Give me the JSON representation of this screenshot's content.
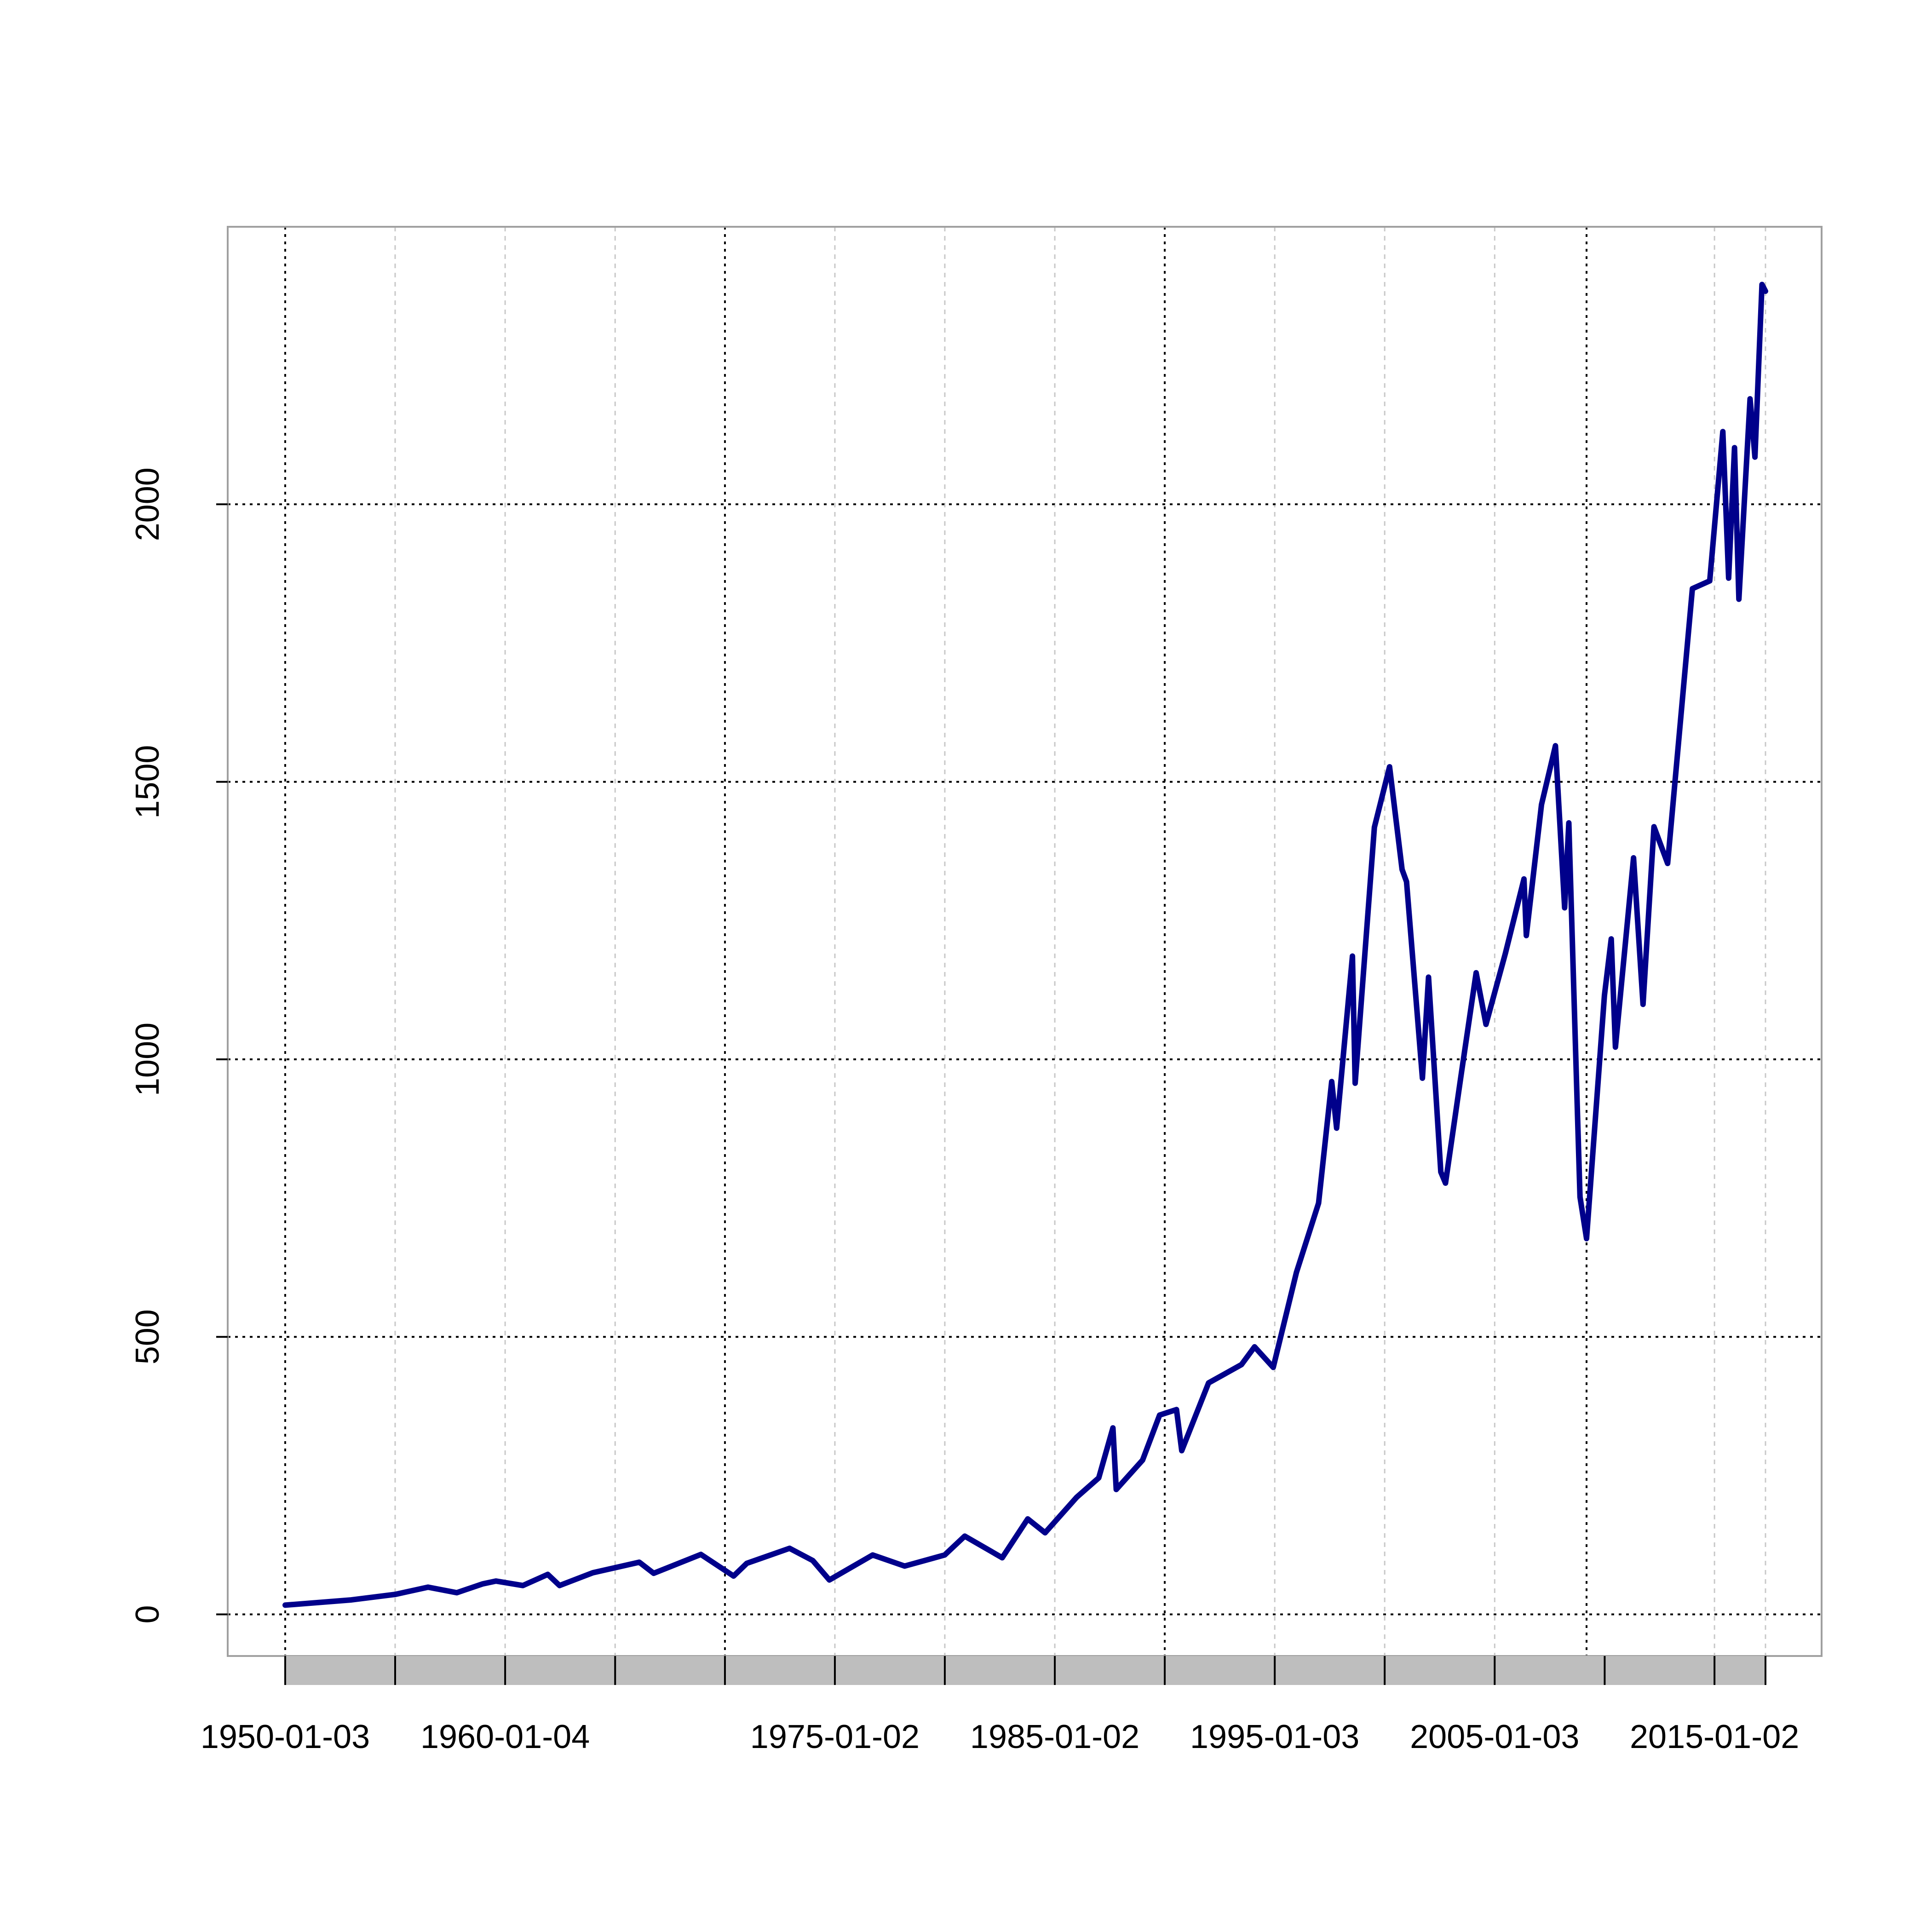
{
  "chart_data": {
    "type": "line",
    "title": "",
    "xlabel": "",
    "ylabel": "",
    "x_tick_labels": [
      "1950-01-03",
      "1960-01-04",
      "1975-01-02",
      "1985-01-02",
      "1995-01-03",
      "2005-01-03",
      "2015-01-02"
    ],
    "x_tick_dates": [
      "1950-01-03",
      "1955-01-03",
      "1960-01-04",
      "1965-01-04",
      "1970-01-02",
      "1975-01-02",
      "1980-01-02",
      "1985-01-02",
      "1990-01-02",
      "1995-01-03",
      "2000-01-03",
      "2005-01-03",
      "2010-01-04",
      "2015-01-02",
      "2017-04-28"
    ],
    "x_major_grid_dates": [
      "1950-01-03",
      "1970-01-02",
      "1990-01-02",
      "2009-03-09"
    ],
    "x_minor_grid_dates": [
      "1955-01-03",
      "1960-01-04",
      "1965-01-04",
      "1975-01-02",
      "1980-01-02",
      "1985-01-02",
      "1995-01-03",
      "2000-01-03",
      "2005-01-03",
      "2015-01-02",
      "2017-04-28"
    ],
    "y_ticks": [
      0,
      500,
      1000,
      1500,
      2000
    ],
    "ylim": [
      -75,
      2500
    ],
    "xlim": [
      "1950-01-03",
      "2017-04-28"
    ],
    "grid": true,
    "colors": {
      "line": "#00008B",
      "major_grid": "#000000",
      "minor_grid": "#C8C8C8",
      "axis_box": "#A0A0A0",
      "time_bar": "#BEBEBE"
    },
    "series": [
      {
        "x": [
          "1950-01-03",
          "1953-01-02",
          "1955-01-03",
          "1956-07-02",
          "1957-10-22",
          "1958-12-31",
          "1959-08-03",
          "1960-10-25",
          "1961-12-12",
          "1962-06-26",
          "1963-12-31",
          "1966-02-09",
          "1966-10-07",
          "1968-11-29",
          "1970-05-26",
          "1970-12-31",
          "1972-12-11",
          "1973-12-31",
          "1974-10-03",
          "1976-09-21",
          "1978-03-06",
          "1979-12-31",
          "1980-11-28",
          "1982-08-12",
          "1983-10-10",
          "1984-07-24",
          "1985-12-31",
          "1987-01-02",
          "1987-08-25",
          "1987-10-19",
          "1988-12-30",
          "1989-10-09",
          "1990-07-16",
          "1990-10-11",
          "1991-12-31",
          "1993-06-30",
          "1994-02-02",
          "1994-12-09",
          "1995-12-29",
          "1996-12-31",
          "1997-08-06",
          "1997-10-27",
          "1998-07-17",
          "1998-08-31",
          "1999-07-16",
          "2000-03-24",
          "2000-10-18",
          "2000-12-31",
          "2001-09-21",
          "2001-12-31",
          "2002-07-23",
          "2002-10-09",
          "2003-06-30",
          "2004-03-01",
          "2004-08-12",
          "2005-06-30",
          "2006-05-05",
          "2006-06-13",
          "2007-02-20",
          "2007-10-09",
          "2008-03-10",
          "2008-05-19",
          "2008-10-10",
          "2008-11-20",
          "2009-03-09",
          "2009-12-31",
          "2010-04-23",
          "2010-07-02",
          "2011-04-29",
          "2011-10-03",
          "2012-04-02",
          "2012-11-15",
          "2013-12-31",
          "2014-10-15",
          "2015-05-21",
          "2015-08-25",
          "2015-12-01",
          "2016-02-11",
          "2016-08-15",
          "2016-11-04",
          "2016-12-31",
          "2017-03-01",
          "2017-04-28"
        ],
        "values": [
          16.7,
          26.0,
          36.0,
          49.0,
          39.0,
          55.0,
          60.0,
          52.0,
          72.0,
          52.0,
          75.0,
          94.0,
          74.0,
          108.0,
          69.0,
          92.0,
          119.0,
          97.0,
          62.0,
          107.0,
          87.0,
          107.0,
          141.0,
          102.0,
          172.0,
          147.0,
          211.0,
          246.0,
          336.0,
          225.0,
          278.0,
          359.0,
          369.0,
          295.0,
          417.0,
          450.0,
          482.0,
          445.0,
          616.0,
          741.0,
          960.0,
          876.0,
          1186.0,
          957.0,
          1418.0,
          1527.0,
          1342.0,
          1320.0,
          966.0,
          1148.0,
          797.0,
          777.0,
          975.0,
          1156.0,
          1063.0,
          1191.0,
          1325.0,
          1223.0,
          1459.0,
          1565.0,
          1273.0,
          1426.0,
          899.0,
          752.0,
          677.0,
          1115.0,
          1217.0,
          1022.0,
          1363.0,
          1099.0,
          1419.0,
          1353.0,
          1848.0,
          1862.0,
          2131.0,
          1867.0,
          2102.0,
          1829.0,
          2190.0,
          2085.0,
          2238.0,
          2396.0,
          2384.0
        ]
      }
    ]
  }
}
